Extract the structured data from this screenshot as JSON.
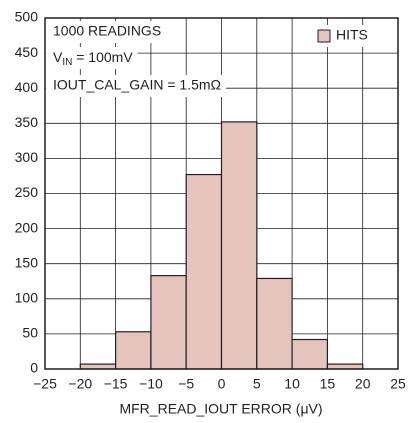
{
  "chart_data": {
    "type": "histogram",
    "xlabel": "MFR_READ_IOUT ERROR (μV)",
    "bins": [
      -20,
      -15,
      -10,
      -5,
      0,
      5,
      10,
      15,
      20
    ],
    "series": [
      {
        "name": "HITS",
        "color": "#e6c4be",
        "values": [
          7,
          53,
          133,
          277,
          352,
          129,
          42,
          7
        ]
      }
    ],
    "annotations": [
      "1000 READINGS",
      {
        "base": "V",
        "sub": "IN",
        "tail": " = 100mV"
      },
      "IOUT_CAL_GAIN = 1.5mΩ"
    ],
    "xlim": [
      -25,
      25
    ],
    "xticks": [
      {
        "value": -25,
        "label": "−25"
      },
      {
        "value": -20,
        "label": "−20"
      },
      {
        "value": -15,
        "label": "−15"
      },
      {
        "value": -10,
        "label": "−10"
      },
      {
        "value": -5,
        "label": "−5"
      },
      0,
      5,
      10,
      15,
      20,
      25
    ],
    "ylim": [
      0,
      500
    ],
    "yticks": [
      0,
      50,
      100,
      150,
      200,
      250,
      300,
      350,
      400,
      450,
      500
    ],
    "grid": true,
    "legend": "upper right"
  }
}
